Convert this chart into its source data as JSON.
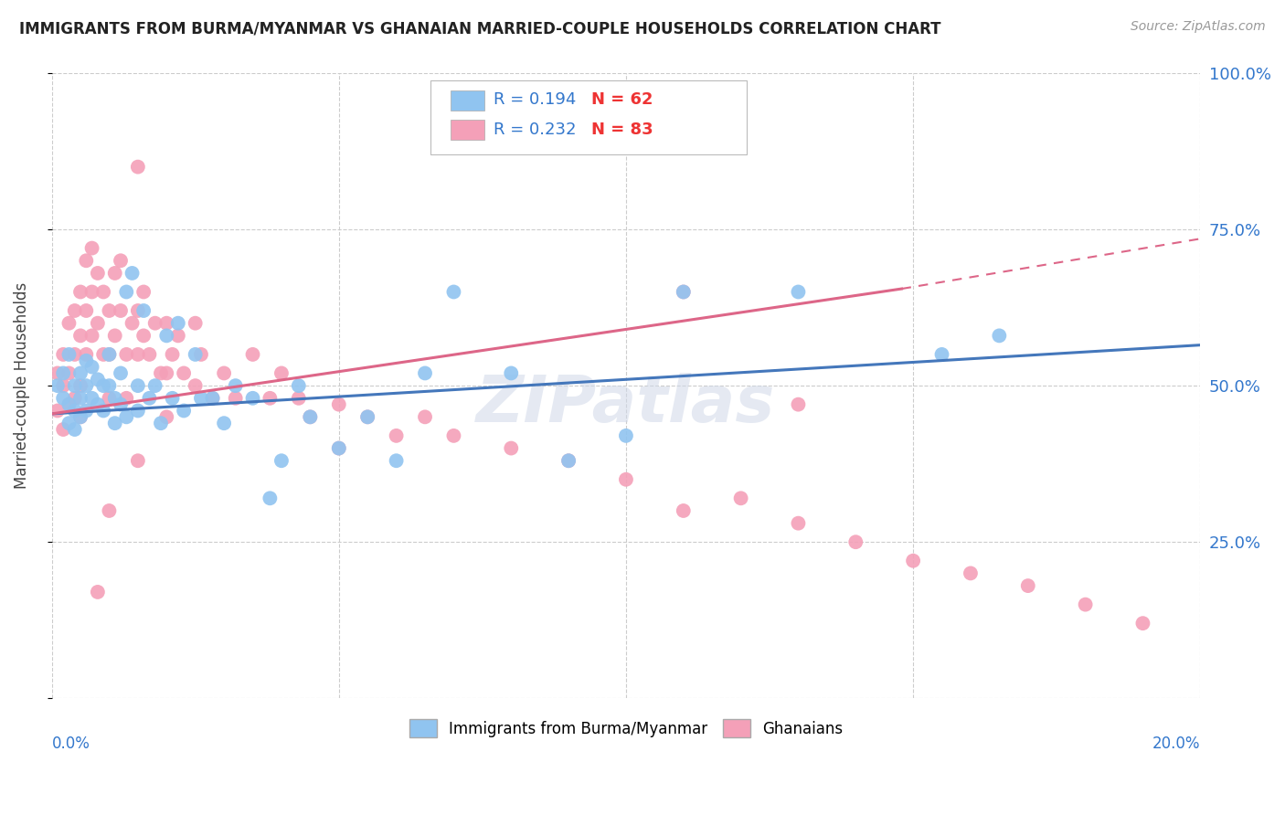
{
  "title": "IMMIGRANTS FROM BURMA/MYANMAR VS GHANAIAN MARRIED-COUPLE HOUSEHOLDS CORRELATION CHART",
  "source": "Source: ZipAtlas.com",
  "ylabel": "Married-couple Households",
  "ytick_values": [
    0.0,
    0.25,
    0.5,
    0.75,
    1.0
  ],
  "ytick_labels": [
    "",
    "25.0%",
    "50.0%",
    "75.0%",
    "100.0%"
  ],
  "xlim": [
    0,
    0.2
  ],
  "ylim": [
    0,
    1.0
  ],
  "color_blue": "#90C4F0",
  "color_pink": "#F4A0B8",
  "line_color_blue": "#4477BB",
  "line_color_pink": "#DD6688",
  "watermark": "ZIPatlas",
  "legend_label1": "Immigrants from Burma/Myanmar",
  "legend_label2": "Ghanaians",
  "blue_x": [
    0.001,
    0.002,
    0.002,
    0.003,
    0.003,
    0.003,
    0.004,
    0.004,
    0.004,
    0.005,
    0.005,
    0.005,
    0.006,
    0.006,
    0.006,
    0.007,
    0.007,
    0.008,
    0.008,
    0.009,
    0.009,
    0.01,
    0.01,
    0.011,
    0.011,
    0.012,
    0.012,
    0.013,
    0.013,
    0.014,
    0.015,
    0.015,
    0.016,
    0.017,
    0.018,
    0.019,
    0.02,
    0.021,
    0.022,
    0.023,
    0.025,
    0.026,
    0.028,
    0.03,
    0.032,
    0.035,
    0.038,
    0.04,
    0.043,
    0.045,
    0.05,
    0.055,
    0.06,
    0.065,
    0.07,
    0.08,
    0.09,
    0.1,
    0.11,
    0.13,
    0.155,
    0.165
  ],
  "blue_y": [
    0.5,
    0.52,
    0.48,
    0.55,
    0.47,
    0.44,
    0.5,
    0.46,
    0.43,
    0.52,
    0.48,
    0.45,
    0.54,
    0.5,
    0.46,
    0.53,
    0.48,
    0.51,
    0.47,
    0.5,
    0.46,
    0.55,
    0.5,
    0.48,
    0.44,
    0.52,
    0.47,
    0.65,
    0.45,
    0.68,
    0.5,
    0.46,
    0.62,
    0.48,
    0.5,
    0.44,
    0.58,
    0.48,
    0.6,
    0.46,
    0.55,
    0.48,
    0.48,
    0.44,
    0.5,
    0.48,
    0.32,
    0.38,
    0.5,
    0.45,
    0.4,
    0.45,
    0.38,
    0.52,
    0.65,
    0.52,
    0.38,
    0.42,
    0.65,
    0.65,
    0.55,
    0.58
  ],
  "pink_x": [
    0.001,
    0.001,
    0.002,
    0.002,
    0.002,
    0.003,
    0.003,
    0.003,
    0.004,
    0.004,
    0.004,
    0.005,
    0.005,
    0.005,
    0.005,
    0.006,
    0.006,
    0.006,
    0.007,
    0.007,
    0.007,
    0.008,
    0.008,
    0.009,
    0.009,
    0.01,
    0.01,
    0.01,
    0.011,
    0.011,
    0.012,
    0.012,
    0.013,
    0.013,
    0.014,
    0.015,
    0.015,
    0.016,
    0.016,
    0.017,
    0.018,
    0.019,
    0.02,
    0.02,
    0.021,
    0.022,
    0.023,
    0.025,
    0.026,
    0.028,
    0.03,
    0.032,
    0.035,
    0.038,
    0.04,
    0.043,
    0.045,
    0.05,
    0.055,
    0.06,
    0.065,
    0.07,
    0.08,
    0.09,
    0.1,
    0.11,
    0.12,
    0.13,
    0.14,
    0.15,
    0.16,
    0.17,
    0.18,
    0.19,
    0.015,
    0.008,
    0.05,
    0.11,
    0.13,
    0.015,
    0.02,
    0.025,
    0.01
  ],
  "pink_y": [
    0.52,
    0.46,
    0.55,
    0.5,
    0.43,
    0.6,
    0.52,
    0.47,
    0.62,
    0.55,
    0.48,
    0.65,
    0.58,
    0.5,
    0.45,
    0.7,
    0.62,
    0.55,
    0.72,
    0.65,
    0.58,
    0.68,
    0.6,
    0.65,
    0.55,
    0.62,
    0.55,
    0.48,
    0.68,
    0.58,
    0.7,
    0.62,
    0.55,
    0.48,
    0.6,
    0.62,
    0.55,
    0.65,
    0.58,
    0.55,
    0.6,
    0.52,
    0.6,
    0.52,
    0.55,
    0.58,
    0.52,
    0.6,
    0.55,
    0.48,
    0.52,
    0.48,
    0.55,
    0.48,
    0.52,
    0.48,
    0.45,
    0.47,
    0.45,
    0.42,
    0.45,
    0.42,
    0.4,
    0.38,
    0.35,
    0.3,
    0.32,
    0.28,
    0.25,
    0.22,
    0.2,
    0.18,
    0.15,
    0.12,
    0.85,
    0.17,
    0.4,
    0.65,
    0.47,
    0.38,
    0.45,
    0.5,
    0.3
  ]
}
